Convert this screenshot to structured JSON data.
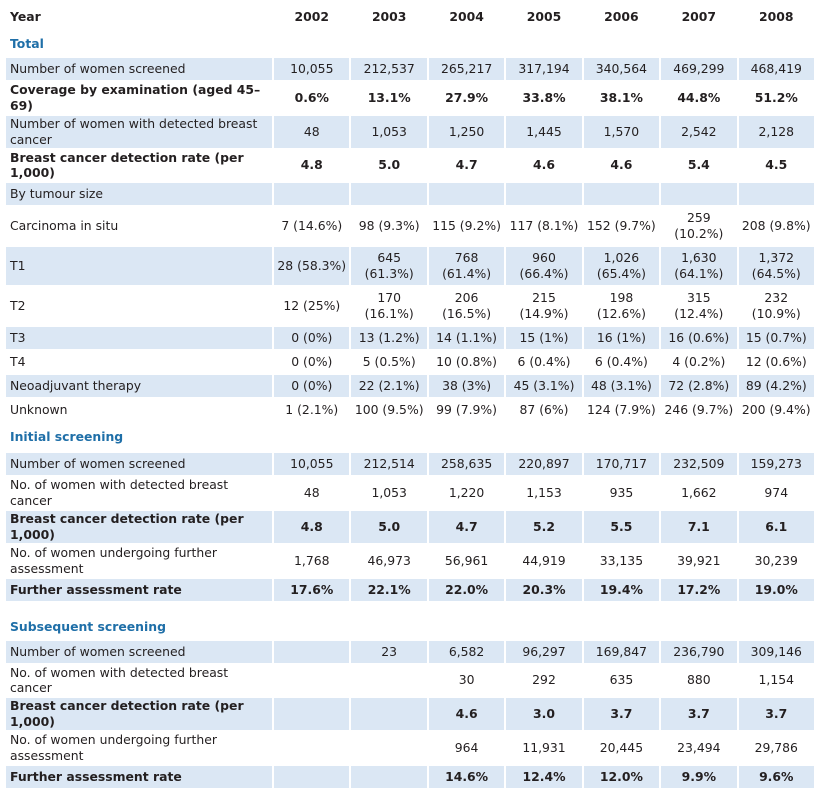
{
  "header": {
    "label": "Year",
    "years": [
      "2002",
      "2003",
      "2004",
      "2005",
      "2006",
      "2007",
      "2008"
    ]
  },
  "rows": [
    {
      "type": "section",
      "label": "Total"
    },
    {
      "type": "data",
      "shaded": true,
      "bold": false,
      "label": "Number of women screened",
      "values": [
        "10,055",
        "212,537",
        "265,217",
        "317,194",
        "340,564",
        "469,299",
        "468,419"
      ]
    },
    {
      "type": "data",
      "shaded": false,
      "bold": true,
      "label": "Coverage by examination (aged 45–69)",
      "values": [
        "0.6%",
        "13.1%",
        "27.9%",
        "33.8%",
        "38.1%",
        "44.8%",
        "51.2%"
      ]
    },
    {
      "type": "data",
      "shaded": true,
      "bold": false,
      "label": "Number of women with detected breast cancer",
      "values": [
        "48",
        "1,053",
        "1,250",
        "1,445",
        "1,570",
        "2,542",
        "2,128"
      ]
    },
    {
      "type": "data",
      "shaded": false,
      "bold": true,
      "label": "Breast cancer detection rate (per 1,000)",
      "values": [
        "4.8",
        "5.0",
        "4.7",
        "4.6",
        "4.6",
        "5.4",
        "4.5"
      ]
    },
    {
      "type": "data",
      "shaded": true,
      "bold": false,
      "label": "By tumour size",
      "values": [
        "",
        "",
        "",
        "",
        "",
        "",
        ""
      ]
    },
    {
      "type": "data",
      "shaded": false,
      "bold": false,
      "label": "Carcinoma in situ",
      "values": [
        "7 (14.6%)",
        "98 (9.3%)",
        "115 (9.2%)",
        "117 (8.1%)",
        "152 (9.7%)",
        "259 (10.2%)",
        "208 (9.8%)"
      ]
    },
    {
      "type": "data",
      "shaded": true,
      "bold": false,
      "label": "T1",
      "values": [
        "28 (58.3%)",
        "645 (61.3%)",
        "768 (61.4%)",
        "960 (66.4%)",
        "1,026 (65.4%)",
        "1,630 (64.1%)",
        "1,372 (64.5%)"
      ]
    },
    {
      "type": "data",
      "shaded": false,
      "bold": false,
      "label": "T2",
      "values": [
        "12 (25%)",
        "170 (16.1%)",
        "206 (16.5%)",
        "215 (14.9%)",
        "198 (12.6%)",
        "315 (12.4%)",
        "232 (10.9%)"
      ]
    },
    {
      "type": "data",
      "shaded": true,
      "bold": false,
      "label": "T3",
      "values": [
        "0 (0%)",
        "13 (1.2%)",
        "14 (1.1%)",
        "15 (1%)",
        "16 (1%)",
        "16 (0.6%)",
        "15 (0.7%)"
      ]
    },
    {
      "type": "data",
      "shaded": false,
      "bold": false,
      "label": "T4",
      "values": [
        "0 (0%)",
        "5 (0.5%)",
        "10 (0.8%)",
        "6 (0.4%)",
        "6 (0.4%)",
        "4 (0.2%)",
        "12 (0.6%)"
      ]
    },
    {
      "type": "data",
      "shaded": true,
      "bold": false,
      "label": "Neoadjuvant therapy",
      "values": [
        "0 (0%)",
        "22 (2.1%)",
        "38 (3%)",
        "45 (3.1%)",
        "48 (3.1%)",
        "72 (2.8%)",
        "89 (4.2%)"
      ]
    },
    {
      "type": "data",
      "shaded": false,
      "bold": false,
      "label": "Unknown",
      "values": [
        "1 (2.1%)",
        "100 (9.5%)",
        "99 (7.9%)",
        "87 (6%)",
        "124 (7.9%)",
        "246 (9.7%)",
        "200 (9.4%)"
      ]
    },
    {
      "type": "section",
      "label": "Initial screening"
    },
    {
      "type": "data",
      "shaded": true,
      "bold": false,
      "label": "Number of women screened",
      "values": [
        "10,055",
        "212,514",
        "258,635",
        "220,897",
        "170,717",
        "232,509",
        "159,273"
      ]
    },
    {
      "type": "data",
      "shaded": false,
      "bold": false,
      "label": "No. of women with detected breast cancer",
      "values": [
        "48",
        "1,053",
        "1,220",
        "1,153",
        "935",
        "1,662",
        "974"
      ]
    },
    {
      "type": "data",
      "shaded": true,
      "bold": true,
      "label": "Breast cancer detection rate (per 1,000)",
      "values": [
        "4.8",
        "5.0",
        "4.7",
        "5.2",
        "5.5",
        "7.1",
        "6.1"
      ]
    },
    {
      "type": "data",
      "shaded": false,
      "bold": false,
      "label": "No. of women undergoing further assessment",
      "values": [
        "1,768",
        "46,973",
        "56,961",
        "44,919",
        "33,135",
        "39,921",
        "30,239"
      ]
    },
    {
      "type": "data",
      "shaded": true,
      "bold": true,
      "label": "Further assessment rate",
      "values": [
        "17.6%",
        "22.1%",
        "22.0%",
        "20.3%",
        "19.4%",
        "17.2%",
        "19.0%"
      ]
    },
    {
      "type": "blank"
    },
    {
      "type": "section",
      "label": "Subsequent screening"
    },
    {
      "type": "data",
      "shaded": true,
      "bold": false,
      "label": "Number of women screened",
      "values": [
        "",
        "23",
        "6,582",
        "96,297",
        "169,847",
        "236,790",
        "309,146"
      ]
    },
    {
      "type": "data",
      "shaded": false,
      "bold": false,
      "label": "No. of women with detected breast cancer",
      "values": [
        "",
        "",
        "30",
        "292",
        "635",
        "880",
        "1,154"
      ]
    },
    {
      "type": "data",
      "shaded": true,
      "bold": true,
      "label": "Breast cancer detection rate (per 1,000)",
      "values": [
        "",
        "",
        "4.6",
        "3.0",
        "3.7",
        "3.7",
        "3.7"
      ]
    },
    {
      "type": "data",
      "shaded": false,
      "bold": false,
      "label": "No. of women undergoing further assessment",
      "values": [
        "",
        "",
        "964",
        "11,931",
        "20,445",
        "23,494",
        "29,786"
      ]
    },
    {
      "type": "data",
      "shaded": true,
      "bold": true,
      "label": "Further assessment rate",
      "values": [
        "",
        "",
        "14.6%",
        "12.4%",
        "12.0%",
        "9.9%",
        "9.6%"
      ]
    }
  ]
}
